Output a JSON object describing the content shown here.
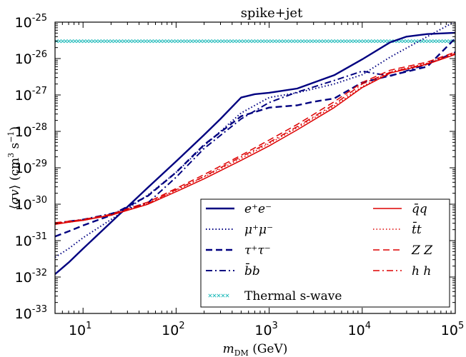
{
  "chart_data": {
    "type": "line",
    "title": "spike+jet",
    "xlabel": "m_DM (GeV)",
    "ylabel": "⟨σv⟩ (cm³ s⁻¹)",
    "xscale": "log",
    "yscale": "log",
    "xlim": [
      5,
      100000
    ],
    "ylim": [
      1e-33,
      1e-25
    ],
    "x_tick_labels": [
      {
        "base": "10",
        "exp": "1"
      },
      {
        "base": "10",
        "exp": "2"
      },
      {
        "base": "10",
        "exp": "3"
      },
      {
        "base": "10",
        "exp": "4"
      },
      {
        "base": "10",
        "exp": "5"
      }
    ],
    "y_tick_labels": [
      {
        "base": "10",
        "exp": "-33"
      },
      {
        "base": "10",
        "exp": "-32"
      },
      {
        "base": "10",
        "exp": "-31"
      },
      {
        "base": "10",
        "exp": "-30"
      },
      {
        "base": "10",
        "exp": "-29"
      },
      {
        "base": "10",
        "exp": "-28"
      },
      {
        "base": "10",
        "exp": "-27"
      },
      {
        "base": "10",
        "exp": "-26"
      },
      {
        "base": "10",
        "exp": "-25"
      }
    ],
    "grid": false,
    "legend_position": "lower-right",
    "series": [
      {
        "name": "e⁺e⁻",
        "color": "#000080",
        "style": "solid",
        "width": 2.4,
        "x": [
          5,
          7,
          10,
          20,
          50,
          100,
          200,
          300,
          500,
          700,
          1000,
          2000,
          5000,
          10000,
          20000,
          30000,
          50000,
          100000
        ],
        "y": [
          1.2e-32,
          2.5e-32,
          6e-32,
          3.2e-31,
          2.9e-30,
          1.5e-29,
          8e-29,
          2.2e-28,
          8.5e-28,
          1.05e-27,
          1.15e-27,
          1.5e-27,
          3.5e-27,
          9.5e-27,
          2.8e-26,
          4e-26,
          4.7e-26,
          5.1e-26
        ]
      },
      {
        "name": "μ⁺μ⁻",
        "color": "#000080",
        "style": "dotted",
        "width": 2.0,
        "x": [
          5,
          7,
          10,
          20,
          50,
          100,
          200,
          500,
          1000,
          2000,
          5000,
          10000,
          20000,
          50000,
          100000
        ],
        "y": [
          3.5e-32,
          6e-32,
          1.2e-31,
          3.8e-31,
          1.8e-30,
          7.5e-30,
          4e-29,
          3.2e-28,
          8.5e-28,
          1.15e-27,
          2e-27,
          3.6e-27,
          1.1e-26,
          4e-26,
          1.05e-25
        ]
      },
      {
        "name": "τ⁺τ⁻",
        "color": "#000080",
        "style": "dashed",
        "width": 2.4,
        "x": [
          5,
          7,
          10,
          20,
          50,
          100,
          200,
          500,
          1000,
          2000,
          3000,
          5000,
          10000,
          20000,
          50000,
          100000
        ],
        "y": [
          1.3e-31,
          1.8e-31,
          2.6e-31,
          5e-31,
          1.7e-30,
          7.5e-30,
          4.3e-29,
          2.6e-28,
          4.5e-28,
          5.2e-28,
          6.5e-28,
          8e-28,
          2.2e-27,
          3.4e-27,
          6e-27,
          3.6e-26
        ]
      },
      {
        "name": "b̄b",
        "color": "#000080",
        "style": "dashdot",
        "width": 2.0,
        "x": [
          5,
          7,
          10,
          20,
          50,
          100,
          200,
          500,
          1000,
          2000,
          5000,
          10000,
          20000,
          50000,
          100000
        ],
        "y": [
          3e-31,
          3.4e-31,
          3.8e-31,
          5.5e-31,
          1.1e-30,
          5.5e-30,
          3.4e-29,
          2.2e-28,
          6.2e-28,
          1.2e-27,
          2.5e-27,
          4.5e-27,
          3.3e-27,
          7e-27,
          1.5e-26
        ]
      },
      {
        "name": "q̄q",
        "color": "#dd0000",
        "style": "solid",
        "width": 1.5,
        "x": [
          5,
          7,
          10,
          20,
          50,
          100,
          200,
          500,
          1000,
          2000,
          5000,
          10000,
          20000,
          50000,
          100000
        ],
        "y": [
          2.8e-31,
          3.2e-31,
          3.6e-31,
          5e-31,
          1e-30,
          2.2e-30,
          5e-30,
          1.6e-29,
          4e-29,
          1.1e-28,
          4.5e-28,
          1.6e-27,
          4e-27,
          7e-27,
          1.3e-26
        ]
      },
      {
        "name": "t̄t",
        "color": "#dd0000",
        "style": "dotted",
        "width": 1.5,
        "x": [
          5,
          7,
          10,
          20,
          50,
          100,
          200,
          500,
          1000,
          2000,
          5000,
          10000,
          20000,
          50000,
          100000
        ],
        "y": [
          3e-31,
          3.3e-31,
          3.7e-31,
          5.1e-31,
          1.05e-30,
          2.4e-30,
          5.6e-30,
          1.8e-29,
          4.6e-29,
          1.25e-28,
          5e-28,
          1.7e-27,
          4.3e-27,
          7.5e-27,
          1.4e-26
        ]
      },
      {
        "name": "Z Z",
        "color": "#dd0000",
        "style": "dashed",
        "width": 1.5,
        "x": [
          5,
          7,
          10,
          20,
          50,
          100,
          200,
          500,
          1000,
          2000,
          5000,
          10000,
          20000,
          50000,
          100000
        ],
        "y": [
          3.1e-31,
          3.4e-31,
          3.8e-31,
          5.3e-31,
          1.15e-30,
          2.7e-30,
          6.5e-30,
          2.2e-29,
          5.8e-29,
          1.55e-28,
          6.5e-28,
          2.2e-27,
          4.8e-27,
          8e-27,
          1.5e-26
        ]
      },
      {
        "name": "h h",
        "color": "#dd0000",
        "style": "dashdot",
        "width": 1.5,
        "x": [
          5,
          7,
          10,
          20,
          50,
          100,
          200,
          500,
          1000,
          2000,
          5000,
          10000,
          20000,
          50000,
          100000
        ],
        "y": [
          2.9e-31,
          3.2e-31,
          3.6e-31,
          5e-31,
          1.05e-30,
          2.5e-30,
          5.8e-30,
          2e-29,
          5e-29,
          1.35e-28,
          5.5e-28,
          2e-27,
          4.2e-27,
          7.2e-27,
          1.35e-26
        ]
      }
    ],
    "reference": {
      "name": "Thermal s-wave",
      "color": "#22bbbb",
      "marker": "x",
      "value": 3e-26
    }
  }
}
